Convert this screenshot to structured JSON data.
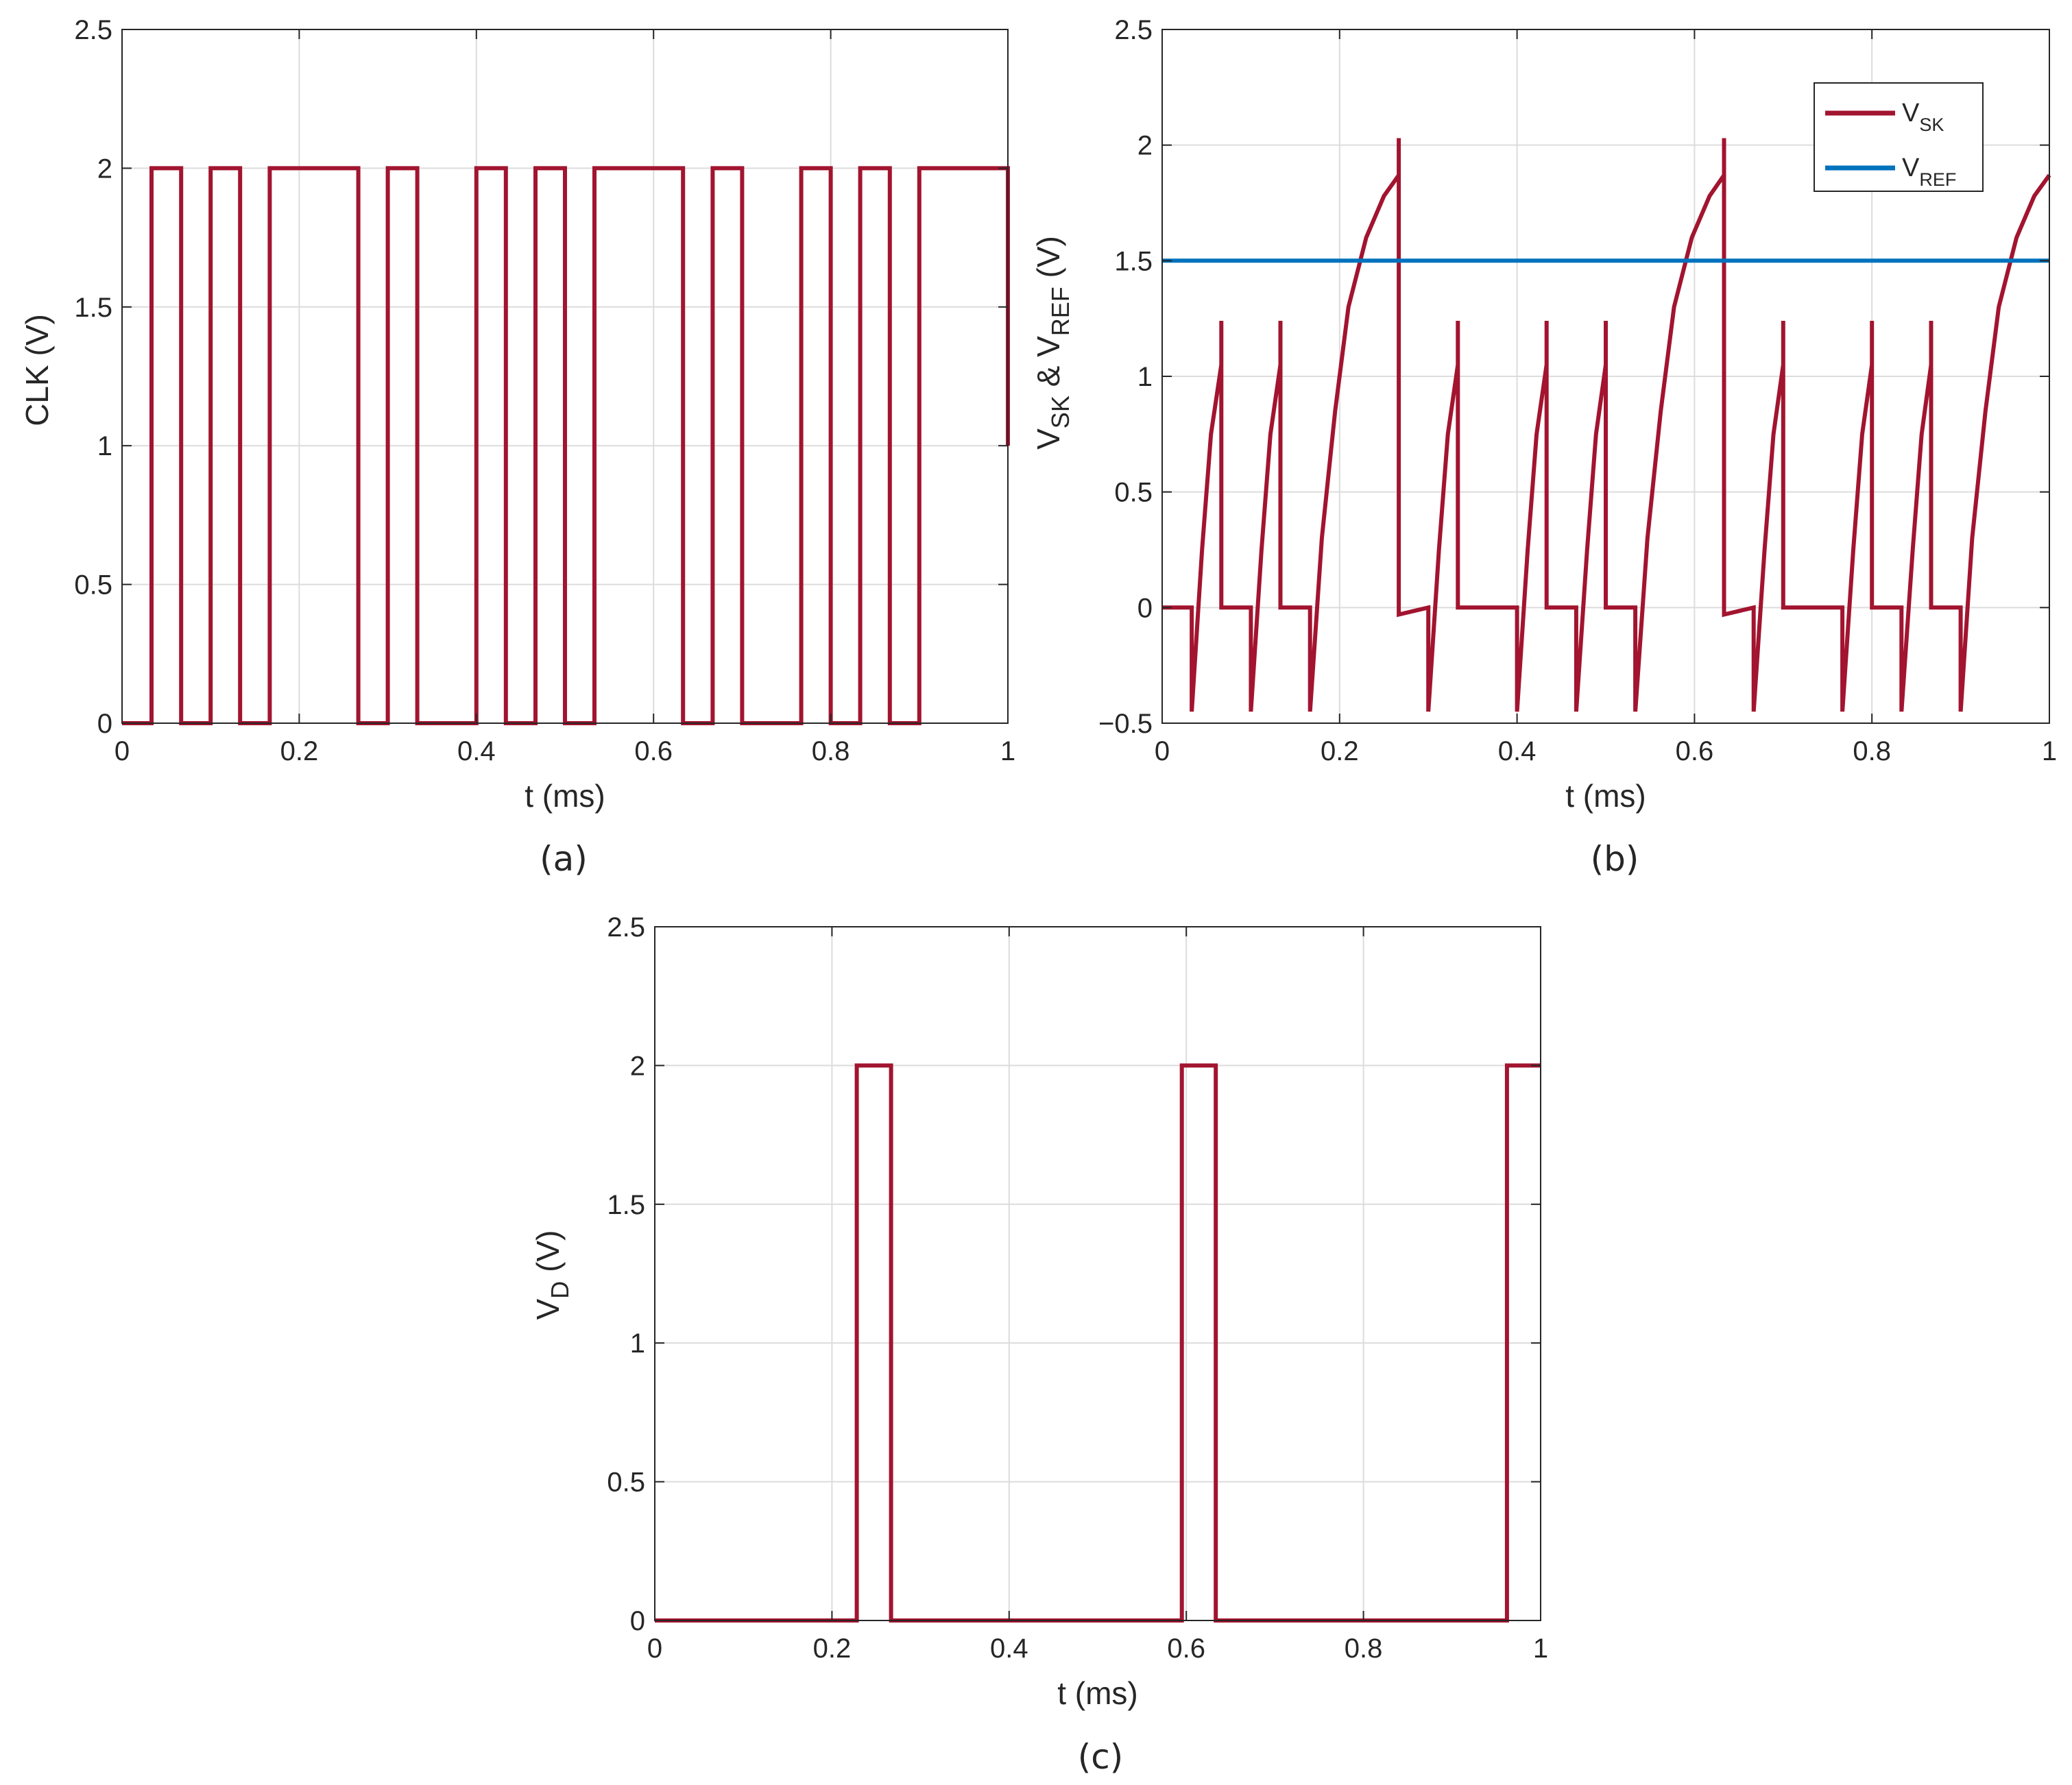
{
  "colors": {
    "vsk": "#A2142F",
    "vref": "#0072BD",
    "grid": "#DCDCDC",
    "axis": "#262626",
    "background": "#FFFFFF"
  },
  "chart_data": [
    {
      "id": "a",
      "type": "line",
      "panel_label": "(a)",
      "xlabel": "t (ms)",
      "ylabel": "CLK (V)",
      "xlim": [
        0,
        1
      ],
      "ylim": [
        0,
        2.5
      ],
      "xticks": [
        "0",
        "0.2",
        "0.4",
        "0.6",
        "0.8",
        "1"
      ],
      "yticks": [
        "0",
        "0.5",
        "1",
        "1.5",
        "2",
        "2.5"
      ],
      "grid": true,
      "series": [
        {
          "color": "#A2142F",
          "x": [
            0,
            0.0333,
            0.0333,
            0.0667,
            0.0667,
            0.1,
            0.1,
            0.1333,
            0.1333,
            0.1667,
            0.1667,
            0.2667,
            0.2667,
            0.3,
            0.3,
            0.3333,
            0.3333,
            0.4,
            0.4,
            0.4333,
            0.4333,
            0.4667,
            0.4667,
            0.5,
            0.5,
            0.5333,
            0.5333,
            0.6333,
            0.6333,
            0.6667,
            0.6667,
            0.7,
            0.7,
            0.7667,
            0.7667,
            0.8,
            0.8,
            0.8333,
            0.8333,
            0.8667,
            0.8667,
            0.9,
            0.9,
            1.0,
            1.0
          ],
          "y": [
            0,
            0,
            2,
            2,
            0,
            0,
            2,
            2,
            0,
            0,
            2,
            2,
            0,
            0,
            2,
            2,
            0,
            0,
            2,
            2,
            0,
            0,
            2,
            2,
            0,
            0,
            2,
            2,
            0,
            0,
            2,
            2,
            0,
            0,
            2,
            2,
            0,
            0,
            2,
            2,
            0,
            0,
            2,
            2,
            1
          ]
        }
      ]
    },
    {
      "id": "b",
      "type": "line",
      "panel_label": "(b)",
      "xlabel": "t (ms)",
      "ylabel_parts": [
        {
          "text": "V",
          "sub": "SK"
        },
        {
          "text": " & V",
          "sub": "REF"
        },
        {
          "text": " (V)",
          "sub": ""
        }
      ],
      "xlim": [
        0,
        1
      ],
      "ylim": [
        -0.5,
        2.5
      ],
      "xticks": [
        "0",
        "0.2",
        "0.4",
        "0.6",
        "0.8",
        "1"
      ],
      "yticks": [
        "−0.5",
        "0",
        "0.5",
        "1",
        "1.5",
        "2",
        "2.5"
      ],
      "grid": true,
      "legend_position": "top-right",
      "legend": [
        {
          "main": "V",
          "sub": "SK",
          "color": "#A2142F"
        },
        {
          "main": "V",
          "sub": "REF",
          "color": "#0072BD"
        }
      ],
      "series": [
        {
          "name": "VSK",
          "color": "#A2142F",
          "x": [
            0,
            0.0333,
            0.0333,
            0.045,
            0.055,
            0.0667,
            0.0667,
            0.0667,
            0.1,
            0.1,
            0.112,
            0.122,
            0.1333,
            0.1333,
            0.1333,
            0.1667,
            0.1667,
            0.18,
            0.195,
            0.21,
            0.23,
            0.25,
            0.2667,
            0.2667,
            0.2667,
            0.3,
            0.3,
            0.312,
            0.322,
            0.3333,
            0.3333,
            0.3333,
            0.4,
            0.4,
            0.412,
            0.422,
            0.4333,
            0.4333,
            0.4333,
            0.4667,
            0.4667,
            0.479,
            0.489,
            0.5,
            0.5,
            0.5,
            0.5333,
            0.5333,
            0.547,
            0.562,
            0.577,
            0.597,
            0.617,
            0.6333,
            0.6333,
            0.6333,
            0.6667,
            0.6667,
            0.679,
            0.689,
            0.7,
            0.7,
            0.7,
            0.7667,
            0.7667,
            0.779,
            0.789,
            0.8,
            0.8,
            0.8,
            0.8333,
            0.8333,
            0.846,
            0.856,
            0.8667,
            0.8667,
            0.8667,
            0.9,
            0.9,
            0.913,
            0.928,
            0.943,
            0.963,
            0.983,
            1.0
          ],
          "y": [
            0,
            0,
            -0.45,
            0.25,
            0.75,
            1.05,
            1.24,
            0,
            0,
            -0.45,
            0.25,
            0.75,
            1.05,
            1.24,
            0,
            0,
            -0.45,
            0.3,
            0.85,
            1.3,
            1.6,
            1.78,
            1.87,
            2.03,
            -0.03,
            0,
            -0.45,
            0.25,
            0.75,
            1.05,
            1.24,
            0,
            0,
            -0.45,
            0.25,
            0.75,
            1.05,
            1.24,
            0,
            0,
            -0.45,
            0.25,
            0.75,
            1.05,
            1.24,
            0,
            0,
            -0.45,
            0.3,
            0.85,
            1.3,
            1.6,
            1.78,
            1.87,
            2.03,
            -0.03,
            0,
            -0.45,
            0.25,
            0.75,
            1.05,
            1.24,
            0,
            0,
            -0.45,
            0.25,
            0.75,
            1.05,
            1.24,
            0,
            0,
            -0.45,
            0.25,
            0.75,
            1.05,
            1.24,
            0,
            0,
            -0.45,
            0.3,
            0.85,
            1.3,
            1.6,
            1.78,
            1.87
          ]
        },
        {
          "name": "VREF",
          "color": "#0072BD",
          "x": [
            0,
            1
          ],
          "y": [
            1.5,
            1.5
          ]
        }
      ]
    },
    {
      "id": "c",
      "type": "line",
      "panel_label": "(c)",
      "xlabel": "t (ms)",
      "ylabel_parts": [
        {
          "text": "V",
          "sub": "D"
        },
        {
          "text": " (V)",
          "sub": ""
        }
      ],
      "xlim": [
        0,
        1
      ],
      "ylim": [
        0,
        2.5
      ],
      "xticks": [
        "0",
        "0.2",
        "0.4",
        "0.6",
        "0.8",
        "1"
      ],
      "yticks": [
        "0",
        "0.5",
        "1",
        "1.5",
        "2",
        "2.5"
      ],
      "grid": true,
      "series": [
        {
          "color": "#A2142F",
          "x": [
            0,
            0.228,
            0.228,
            0.2667,
            0.2667,
            0.595,
            0.595,
            0.6333,
            0.6333,
            0.962,
            0.962,
            1.0
          ],
          "y": [
            0,
            0,
            2,
            2,
            0,
            0,
            2,
            2,
            0,
            0,
            2,
            2
          ]
        }
      ]
    }
  ]
}
